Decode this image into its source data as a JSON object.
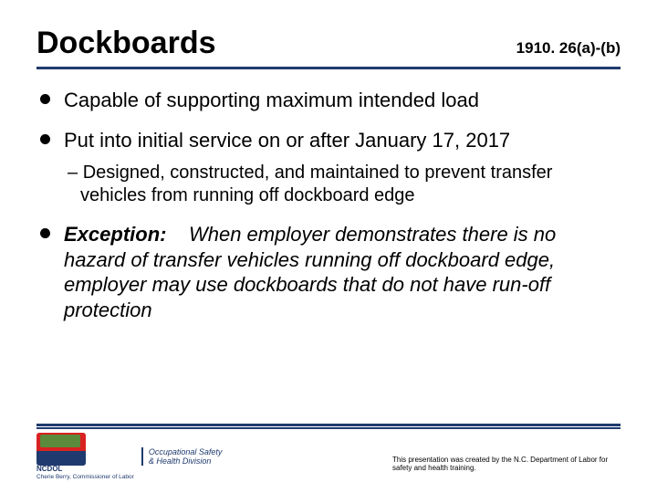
{
  "header": {
    "title": "Dockboards",
    "reference": "1910. 26(a)-(b)"
  },
  "bullets": [
    {
      "text": "Capable of supporting maximum intended load",
      "sub": []
    },
    {
      "text": "Put into initial service on or after January 17, 2017",
      "sub": [
        "Designed, constructed, and maintained to prevent transfer vehicles from running off dockboard edge"
      ]
    },
    {
      "exception_label": "Exception:",
      "text": "When employer demonstrates there is no hazard of transfer vehicles running off dockboard edge, employer may use dockboards that do not have run-off protection",
      "is_exception": true,
      "sub": []
    }
  ],
  "branding": {
    "acronym": "NCDOL",
    "commissioner": "Cherie Berry, Commissioner of Labor",
    "division_line1": "Occupational Safety",
    "division_line2": "& Health Division"
  },
  "attribution": "This presentation was created by the N.C. Department of Labor for safety and health training.",
  "colors": {
    "rule": "#1f3a6e",
    "text": "#000000",
    "background": "#ffffff"
  }
}
